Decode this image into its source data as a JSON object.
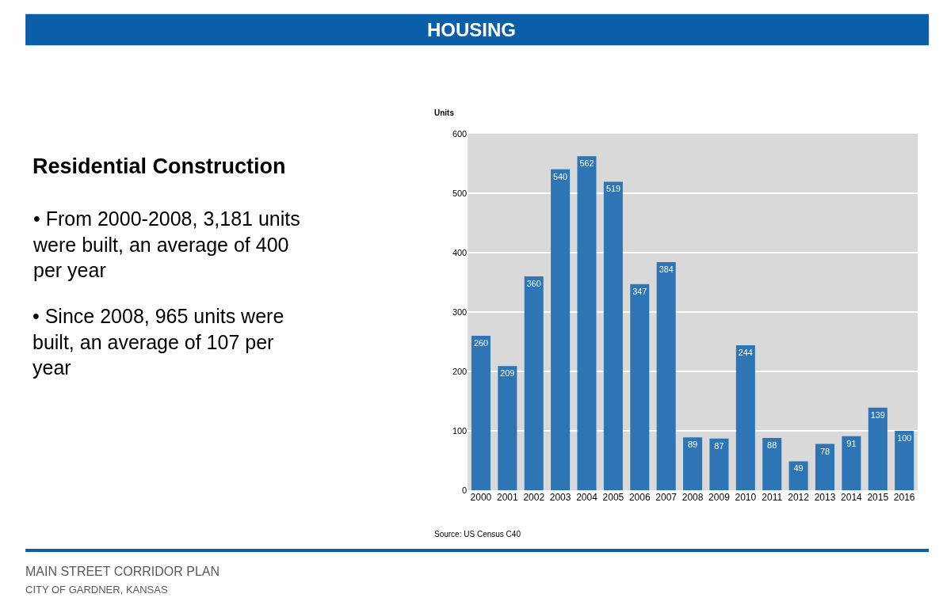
{
  "chart_data": {
    "type": "bar",
    "title": "HOUSING",
    "subtitle": "Residential Construction",
    "ylabel": "Units",
    "categories": [
      "2000",
      "2001",
      "2002",
      "2003",
      "2004",
      "2005",
      "2006",
      "2007",
      "2008",
      "2009",
      "2010",
      "2011",
      "2012",
      "2013",
      "2014",
      "2015",
      "2016"
    ],
    "values": [
      260,
      209,
      360,
      540,
      562,
      519,
      347,
      384,
      89,
      87,
      244,
      88,
      49,
      78,
      91,
      139,
      100
    ],
    "color": "#2e75b6",
    "ylim": [
      0,
      600
    ],
    "yticks": [
      0,
      100,
      200,
      300,
      400,
      500,
      600
    ],
    "grid": "y",
    "data_labels": true,
    "annotations": [
      "• From 2000-2008, 3,181 units were built, an average of 400 per year",
      "• Since 2008, 965 units were built, an average of 107 per year",
      "Source: US Census C40",
      "MAIN STREET CORRIDOR PLAN",
      "CITY OF GARDNER, KANSAS"
    ]
  }
}
